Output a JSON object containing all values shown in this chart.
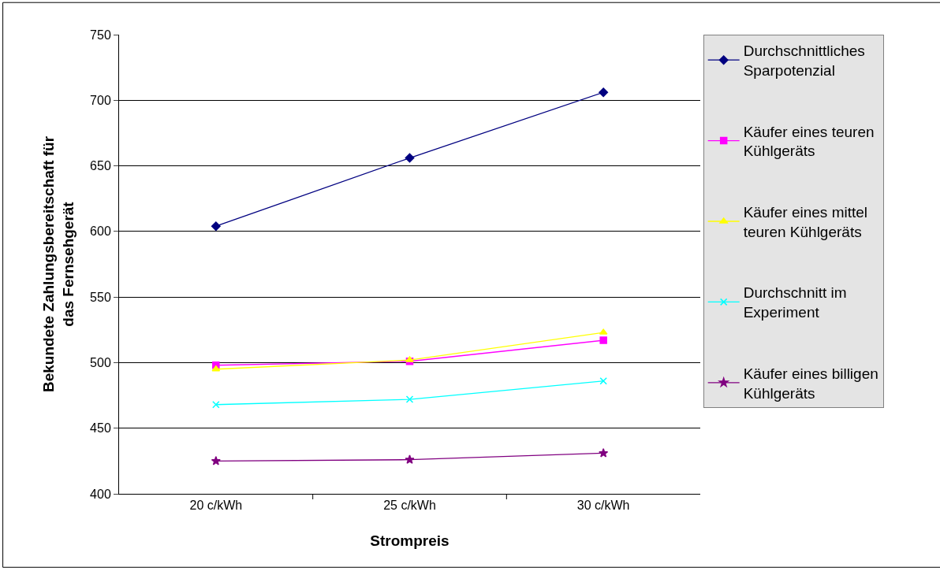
{
  "chart_data": {
    "type": "line",
    "xlabel": "Strompreis",
    "ylabel": "Bekundete Zahlungsbereitschaft für das Fernsehgerät",
    "categories": [
      "20 c/kWh",
      "25 c/kWh",
      "30 c/kWh"
    ],
    "series": [
      {
        "name": "Durchschnittliches Sparpotenzial",
        "color": "#000080",
        "marker": "diamond",
        "values": [
          604,
          656,
          706
        ]
      },
      {
        "name": "Käufer eines teuren Kühlgeräts",
        "color": "#ff00ff",
        "marker": "square",
        "values": [
          498,
          501,
          517
        ]
      },
      {
        "name": "Käufer eines mittel teuren Kühlgeräts",
        "color": "#ffff00",
        "marker": "triangle",
        "values": [
          495,
          502,
          523
        ]
      },
      {
        "name": "Durchschnitt im Experiment",
        "color": "#00ffff",
        "marker": "cross",
        "values": [
          468,
          472,
          486
        ]
      },
      {
        "name": "Käufer eines billigen Kühlgeräts",
        "color": "#800080",
        "marker": "star",
        "values": [
          425,
          426,
          431
        ]
      }
    ],
    "ylim": [
      400,
      750
    ],
    "yticks": [
      400,
      450,
      500,
      550,
      600,
      650,
      700,
      750
    ],
    "grid": "y",
    "legend": "right"
  }
}
